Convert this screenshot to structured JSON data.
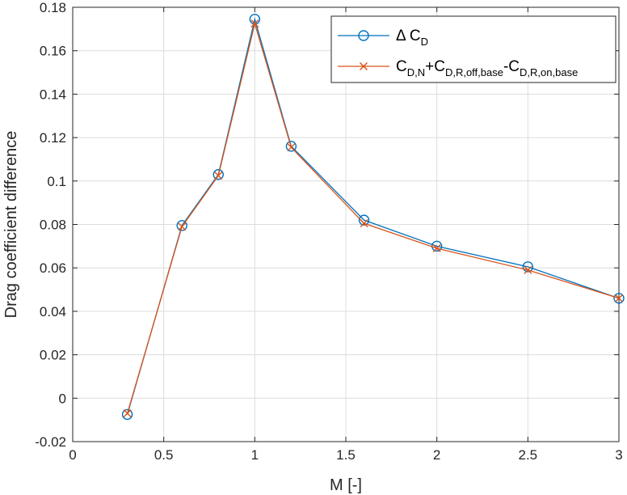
{
  "chart_data": {
    "type": "line",
    "xlabel": "M [-]",
    "ylabel": "Drag coefficient difference",
    "xlim": [
      0,
      3
    ],
    "ylim": [
      -0.02,
      0.18
    ],
    "x_ticks": [
      0,
      0.5,
      1,
      1.5,
      2,
      2.5,
      3
    ],
    "x_tick_labels": [
      "0",
      "0.5",
      "1",
      "1.5",
      "2",
      "2.5",
      "3"
    ],
    "y_ticks": [
      -0.02,
      0,
      0.02,
      0.04,
      0.06,
      0.08,
      0.1,
      0.12,
      0.14,
      0.16,
      0.18
    ],
    "y_tick_labels": [
      "-0.02",
      "0",
      "0.02",
      "0.04",
      "0.06",
      "0.08",
      "0.1",
      "0.12",
      "0.14",
      "0.16",
      "0.18"
    ],
    "grid": true,
    "legend_position": "top-right",
    "series": [
      {
        "legend": {
          "prefix": "Δ C",
          "sub": "D"
        },
        "color": "#0072BD",
        "marker": "circle",
        "x": [
          0.3,
          0.6,
          0.8,
          1.0,
          1.2,
          1.6,
          2.0,
          2.5,
          3.0
        ],
        "y": [
          -0.0075,
          0.0795,
          0.103,
          0.1745,
          0.116,
          0.082,
          0.07,
          0.0605,
          0.046
        ]
      },
      {
        "legend": {
          "parts": [
            "C",
            "D,N",
            "+C",
            "D,R,off,base",
            "-C",
            "D,R,on,base"
          ]
        },
        "color": "#D95319",
        "marker": "x",
        "x": [
          0.3,
          0.6,
          0.8,
          1.0,
          1.2,
          1.6,
          2.0,
          2.5,
          3.0
        ],
        "y": [
          -0.007,
          0.079,
          0.1025,
          0.1725,
          0.1155,
          0.0805,
          0.069,
          0.059,
          0.046
        ]
      }
    ]
  }
}
